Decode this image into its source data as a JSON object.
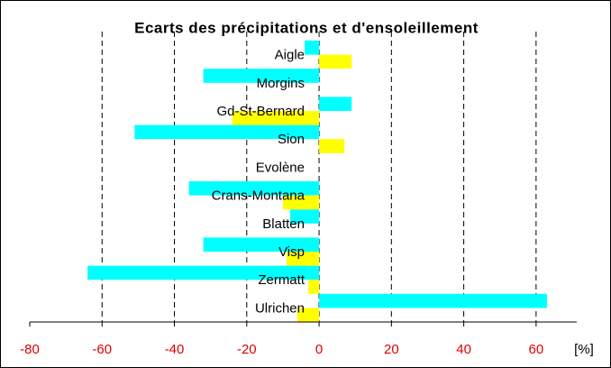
{
  "chart_data": {
    "type": "hbar",
    "title": "Ecarts des précipitations et d'ensoleillement",
    "x_label": "[%]",
    "categories": [
      "Aigle",
      "Morgins",
      "Gd-St-Bernard",
      "Sion",
      "Evolène",
      "Crans-Montana",
      "Blatten",
      "Visp",
      "Zermatt",
      "Ulrichen"
    ],
    "series": [
      {
        "color": "#00ffff",
        "values": [
          -4,
          -32,
          9,
          -51,
          0,
          -36,
          -8,
          -32,
          -64,
          63
        ]
      },
      {
        "color": "#ffff00",
        "values": [
          9,
          0,
          -24,
          7,
          0,
          -10,
          0,
          -9,
          -3,
          -6
        ]
      }
    ],
    "xlim": [
      -80,
      70
    ],
    "xticks": [
      -80,
      -60,
      -40,
      -20,
      0,
      20,
      40,
      60
    ],
    "grid": true
  }
}
